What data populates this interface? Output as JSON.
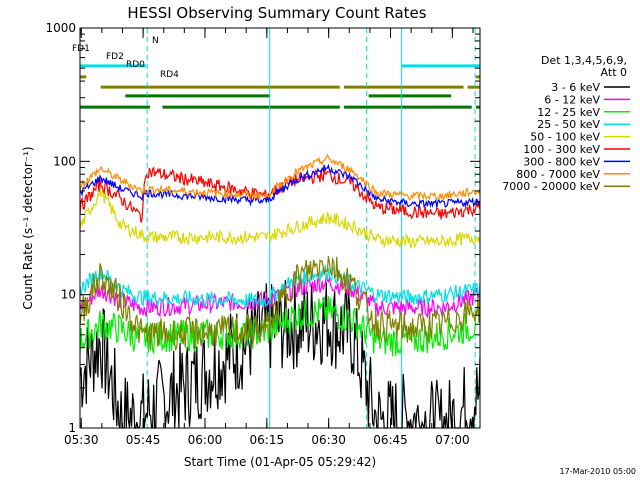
{
  "chart_data": {
    "type": "line",
    "title": "HESSI Observing Summary Count Rates",
    "xlabel": "Start Time (01-Apr-05 05:29:42)",
    "ylabel": "Count Rate (s⁻¹ detector⁻¹)",
    "yscale": "log",
    "ylim": [
      1,
      1000
    ],
    "xlim_minutes": [
      0,
      97
    ],
    "x_tick_labels": [
      "05:30",
      "05:45",
      "06:00",
      "06:15",
      "06:30",
      "06:45",
      "07:00"
    ],
    "x_tick_minutes": [
      0.3,
      15.3,
      30.3,
      45.3,
      60.3,
      75.3,
      90.3
    ],
    "y_tick_labels": [
      "1",
      "10",
      "100",
      "1000"
    ],
    "y_tick_values": [
      1,
      10,
      100,
      1000
    ],
    "legend_header": [
      "Det 1,3,4,5,6,9,",
      "Att 0"
    ],
    "legend_position": "right",
    "series": [
      {
        "name": "3 - 6 keV",
        "color": "#000000",
        "base": [
          2.5,
          4.5,
          1.2,
          1.2,
          1.3,
          5.5,
          6,
          6.5,
          5,
          1.1,
          1.2,
          1.0,
          1.8
        ],
        "x": [
          0,
          5,
          10,
          15,
          16,
          45,
          52,
          60,
          66,
          72,
          80,
          88,
          97
        ]
      },
      {
        "name": "6 - 12 keV",
        "color": "#ff00ff",
        "base": [
          8,
          11,
          9,
          8,
          8,
          9,
          11,
          12.5,
          11,
          8,
          8,
          8,
          10
        ],
        "x": [
          0,
          5,
          10,
          15,
          16,
          45,
          52,
          60,
          66,
          72,
          80,
          88,
          97
        ]
      },
      {
        "name": "12 - 25 keV",
        "color": "#00ee00",
        "base": [
          4.5,
          6,
          5.5,
          4.5,
          4.8,
          5.2,
          7,
          7.5,
          6.5,
          4.5,
          4.5,
          5,
          6
        ],
        "x": [
          0,
          5,
          10,
          15,
          16,
          45,
          52,
          60,
          66,
          72,
          80,
          88,
          97
        ]
      },
      {
        "name": "25 - 50 keV",
        "color": "#00e0e0",
        "base": [
          11,
          15,
          11,
          9.5,
          9.5,
          9,
          13,
          15,
          12,
          10,
          9.5,
          10,
          11
        ],
        "x": [
          0,
          5,
          10,
          15,
          16,
          45,
          52,
          60,
          66,
          72,
          80,
          88,
          97
        ]
      },
      {
        "name": "50 - 100 keV",
        "color": "#d8d800",
        "base": [
          32,
          60,
          33,
          28,
          27,
          27,
          32,
          38,
          33,
          26,
          25,
          25,
          27
        ],
        "x": [
          0,
          5,
          10,
          15,
          16,
          45,
          52,
          60,
          66,
          72,
          80,
          88,
          97
        ]
      },
      {
        "name": "100 - 300 keV",
        "color": "#ff0000",
        "base": [
          45,
          68,
          52,
          38,
          85,
          55,
          72,
          80,
          68,
          45,
          42,
          40,
          45
        ],
        "x": [
          0,
          5,
          10,
          15,
          16,
          45,
          52,
          60,
          66,
          72,
          80,
          88,
          97
        ]
      },
      {
        "name": "300 - 800 keV",
        "color": "#0000ff",
        "base": [
          58,
          75,
          62,
          55,
          58,
          50,
          72,
          90,
          75,
          52,
          48,
          48,
          50
        ],
        "x": [
          0,
          5,
          10,
          15,
          16,
          45,
          52,
          60,
          66,
          72,
          80,
          88,
          97
        ]
      },
      {
        "name": "800 - 7000 keV",
        "color": "#ff8c00",
        "base": [
          65,
          88,
          72,
          60,
          62,
          55,
          82,
          105,
          85,
          58,
          55,
          55,
          60
        ],
        "x": [
          0,
          5,
          10,
          15,
          16,
          45,
          52,
          60,
          66,
          72,
          80,
          88,
          97
        ]
      },
      {
        "name": "7000 - 20000 keV",
        "color": "#808000",
        "base": [
          7,
          14,
          9,
          5,
          5,
          5.5,
          13,
          18,
          12,
          6,
          5.5,
          6,
          8
        ],
        "x": [
          0,
          5,
          10,
          15,
          16,
          45,
          52,
          60,
          66,
          72,
          80,
          88,
          97
        ]
      }
    ],
    "flags": [
      {
        "label": "N",
        "color": "#00e0e0",
        "y": 520,
        "segments": [
          [
            0,
            16
          ],
          [
            78,
            97
          ]
        ]
      },
      {
        "label": "FD1",
        "color": "#808000",
        "y": 430,
        "segments": [
          [
            0,
            1.5
          ],
          [
            96,
            97
          ]
        ]
      },
      {
        "label": "FD2",
        "color": "#808000",
        "y": 360,
        "segments": [
          [
            5,
            63
          ],
          [
            64,
            93
          ],
          [
            94,
            97
          ]
        ]
      },
      {
        "label": "RD0",
        "color": "#007700",
        "y": 310,
        "segments": [
          [
            11,
            46
          ],
          [
            70,
            90
          ]
        ]
      },
      {
        "label": "RD4",
        "color": "#007700",
        "y": 255,
        "segments": [
          [
            0,
            17
          ],
          [
            20,
            63
          ],
          [
            64,
            95
          ],
          [
            96,
            97
          ]
        ]
      }
    ],
    "vlines": [
      {
        "x": 0,
        "style": "solid"
      },
      {
        "x": 16.3,
        "style": "dashed"
      },
      {
        "x": 46,
        "style": "solid"
      },
      {
        "x": 69.5,
        "style": "dashed"
      },
      {
        "x": 78,
        "style": "solid"
      },
      {
        "x": 95.8,
        "style": "dashed"
      }
    ],
    "footer_date": "17-Mar-2010 05:00"
  }
}
